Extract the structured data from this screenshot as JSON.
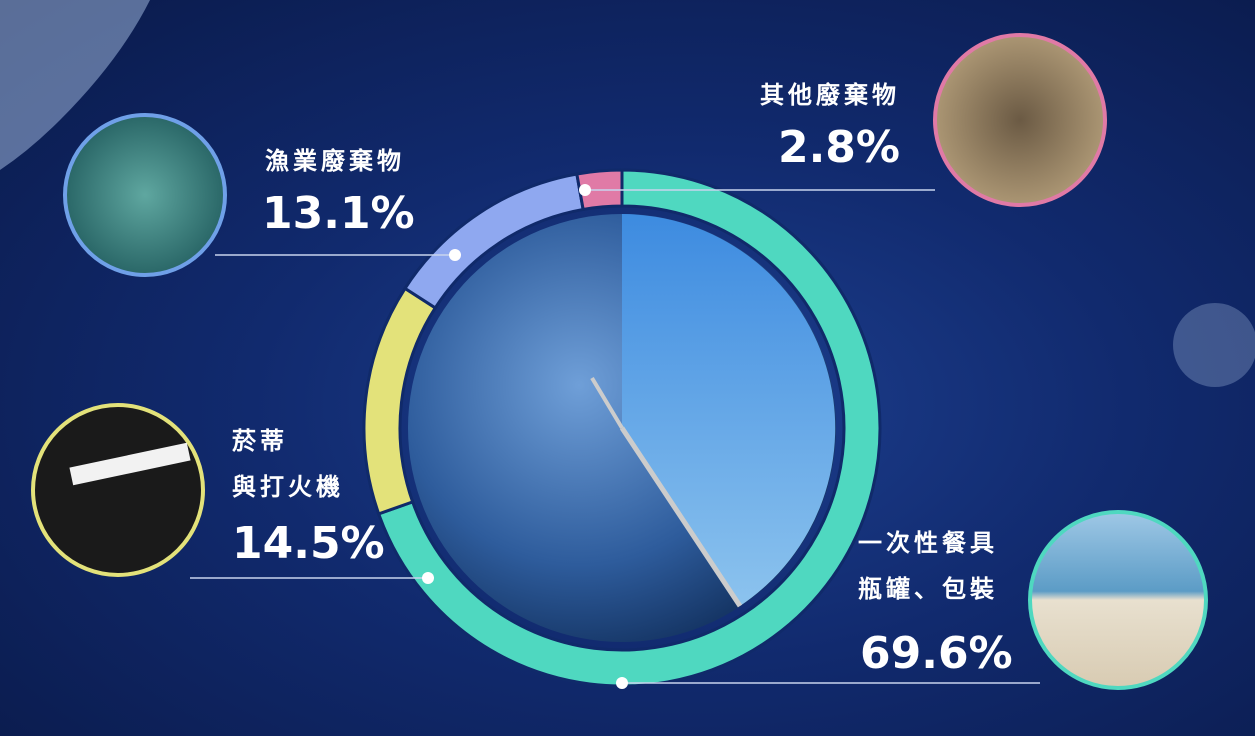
{
  "chart_data": {
    "type": "pie",
    "donut": true,
    "categories": [
      "一次性餐具\n瓶罐、包裝",
      "菸蒂\n與打火機",
      "漁業廢棄物",
      "其他廢棄物"
    ],
    "values": [
      69.6,
      14.5,
      13.1,
      2.8
    ],
    "value_labels": [
      "69.6%",
      "14.5%",
      "13.1%",
      "2.8%"
    ],
    "colors": [
      "#4fd8c0",
      "#e3e27a",
      "#8fa8f0",
      "#e07aa6"
    ]
  }
}
